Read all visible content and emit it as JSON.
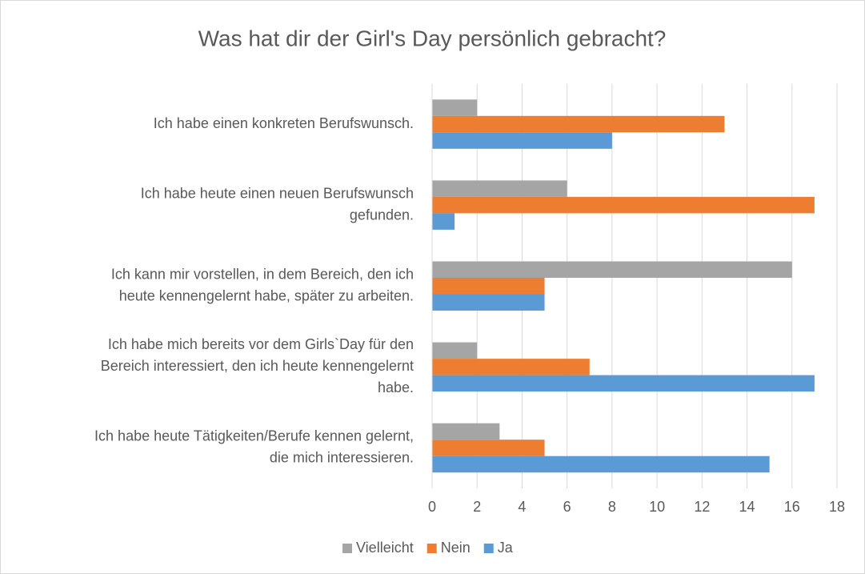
{
  "chart_data": {
    "type": "barh",
    "title": "Was hat dir der Girl's Day persönlich gebracht?",
    "categories": [
      [
        "Ich habe einen konkreten Berufswunsch."
      ],
      [
        "Ich habe heute einen neuen Berufswunsch",
        "gefunden."
      ],
      [
        "Ich kann mir vorstellen, in dem Bereich, den ich",
        "heute kennengelernt habe, später zu arbeiten."
      ],
      [
        "Ich habe mich bereits vor dem Girls`Day für den",
        "Bereich interessiert, den ich heute kennengelernt",
        "habe."
      ],
      [
        "Ich habe heute Tätigkeiten/Berufe kennen gelernt,",
        "die mich interessieren."
      ]
    ],
    "series": [
      {
        "name": "Vielleicht",
        "color": "#a5a5a5",
        "values": [
          2,
          6,
          16,
          2,
          3
        ]
      },
      {
        "name": "Nein",
        "color": "#ed7d31",
        "values": [
          13,
          17,
          5,
          7,
          5
        ]
      },
      {
        "name": "Ja",
        "color": "#5b9bd5",
        "values": [
          8,
          1,
          5,
          17,
          15
        ]
      }
    ],
    "xlim": [
      0,
      18
    ],
    "xticks": [
      0,
      2,
      4,
      6,
      8,
      10,
      12,
      14,
      16,
      18
    ],
    "grid": true,
    "legend": "bottom"
  }
}
